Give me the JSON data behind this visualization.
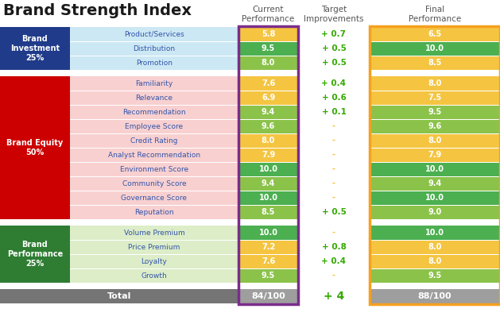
{
  "title": "Brand Strength Index",
  "col_headers": [
    {
      "text": "Current\nPerformance",
      "color": "#555555"
    },
    {
      "text": "Target\nImprovements",
      "color": "#555555"
    },
    {
      "text": "Final\nPerformance",
      "color": "#555555"
    }
  ],
  "groups": [
    {
      "label": "Brand\nInvestment\n25%",
      "label_color": "#1f3b8a",
      "row_bg": "#cce8f4",
      "rows": [
        {
          "name": "Product/Services",
          "current": "5.8",
          "current_bg": "#f5c542",
          "improvement": "+ 0.7",
          "imp_is_dash": false,
          "final": "6.5",
          "final_bg": "#f5c542"
        },
        {
          "name": "Distribution",
          "current": "9.5",
          "current_bg": "#4caf50",
          "improvement": "+ 0.5",
          "imp_is_dash": false,
          "final": "10.0",
          "final_bg": "#4caf50"
        },
        {
          "name": "Promotion",
          "current": "8.0",
          "current_bg": "#8bc34a",
          "improvement": "+ 0.5",
          "imp_is_dash": false,
          "final": "8.5",
          "final_bg": "#f5c542"
        }
      ]
    },
    {
      "label": "Brand Equity\n50%",
      "label_color": "#cc0000",
      "row_bg": "#f8d0d0",
      "rows": [
        {
          "name": "Familiarity",
          "current": "7.6",
          "current_bg": "#f5c542",
          "improvement": "+ 0.4",
          "imp_is_dash": false,
          "final": "8.0",
          "final_bg": "#f5c542"
        },
        {
          "name": "Relevance",
          "current": "6.9",
          "current_bg": "#f5c542",
          "improvement": "+ 0.6",
          "imp_is_dash": false,
          "final": "7.5",
          "final_bg": "#f5c542"
        },
        {
          "name": "Recommendation",
          "current": "9.4",
          "current_bg": "#8bc34a",
          "improvement": "+ 0.1",
          "imp_is_dash": false,
          "final": "9.5",
          "final_bg": "#8bc34a"
        },
        {
          "name": "Employee Score",
          "current": "9.6",
          "current_bg": "#8bc34a",
          "improvement": "-",
          "imp_is_dash": true,
          "final": "9.6",
          "final_bg": "#8bc34a"
        },
        {
          "name": "Credit Rating",
          "current": "8.0",
          "current_bg": "#f5c542",
          "improvement": "-",
          "imp_is_dash": true,
          "final": "8.0",
          "final_bg": "#f5c542"
        },
        {
          "name": "Analyst Recommendation",
          "current": "7.9",
          "current_bg": "#f5c542",
          "improvement": "-",
          "imp_is_dash": true,
          "final": "7.9",
          "final_bg": "#f5c542"
        },
        {
          "name": "Environment Score",
          "current": "10.0",
          "current_bg": "#4caf50",
          "improvement": "-",
          "imp_is_dash": true,
          "final": "10.0",
          "final_bg": "#4caf50"
        },
        {
          "name": "Community Score",
          "current": "9.4",
          "current_bg": "#8bc34a",
          "improvement": "-",
          "imp_is_dash": true,
          "final": "9.4",
          "final_bg": "#8bc34a"
        },
        {
          "name": "Governance Score",
          "current": "10.0",
          "current_bg": "#4caf50",
          "improvement": "-",
          "imp_is_dash": true,
          "final": "10.0",
          "final_bg": "#4caf50"
        },
        {
          "name": "Reputation",
          "current": "8.5",
          "current_bg": "#8bc34a",
          "improvement": "+ 0.5",
          "imp_is_dash": false,
          "final": "9.0",
          "final_bg": "#8bc34a"
        }
      ]
    },
    {
      "label": "Brand\nPerformance\n25%",
      "label_color": "#2e7d32",
      "row_bg": "#dcedc8",
      "rows": [
        {
          "name": "Volume Premium",
          "current": "10.0",
          "current_bg": "#4caf50",
          "improvement": "-",
          "imp_is_dash": true,
          "final": "10.0",
          "final_bg": "#4caf50"
        },
        {
          "name": "Price Premium",
          "current": "7.2",
          "current_bg": "#f5c542",
          "improvement": "+ 0.8",
          "imp_is_dash": false,
          "final": "8.0",
          "final_bg": "#f5c542"
        },
        {
          "name": "Loyalty",
          "current": "7.6",
          "current_bg": "#f5c542",
          "improvement": "+ 0.4",
          "imp_is_dash": false,
          "final": "8.0",
          "final_bg": "#f5c542"
        },
        {
          "name": "Growth",
          "current": "9.5",
          "current_bg": "#8bc34a",
          "improvement": "-",
          "imp_is_dash": true,
          "final": "9.5",
          "final_bg": "#8bc34a"
        }
      ]
    }
  ],
  "total_label": "Total",
  "total_current": "84/100",
  "total_improvement": "+ 4",
  "total_final": "88/100",
  "total_bg": "#757575",
  "improvement_color": "#33aa00",
  "dash_color": "#f5c542",
  "border_color_current": "#7b2d8b",
  "border_color_final": "#f5a020",
  "bg_color": "#ffffff",
  "title_fontsize": 14,
  "header_fontsize": 7.5,
  "label_fontsize": 7,
  "cat_fontsize": 6.5,
  "cell_fontsize": 7,
  "total_fontsize": 8
}
